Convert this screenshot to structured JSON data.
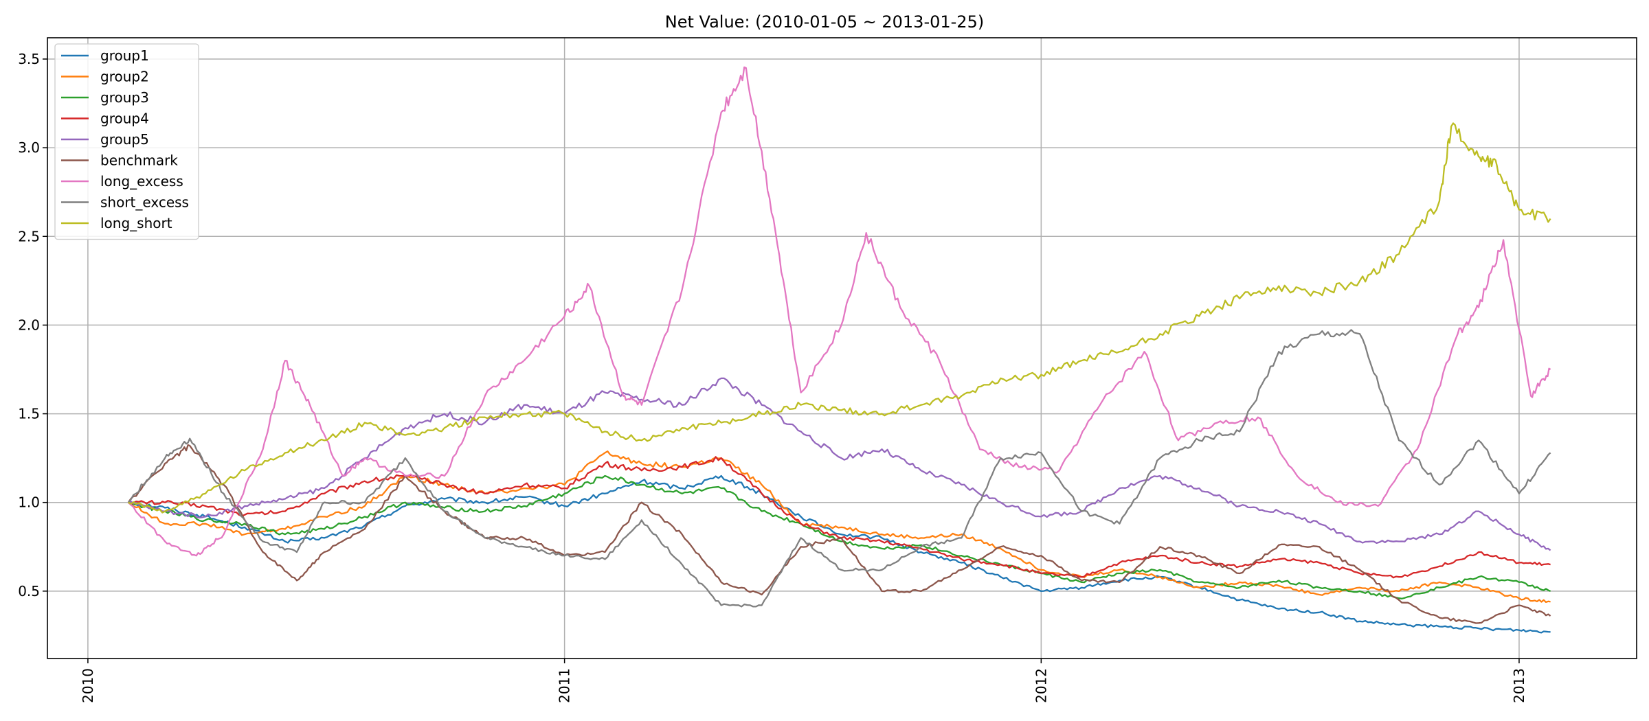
{
  "chart_data": {
    "type": "line",
    "title": "Net Value: (2010-01-05 ~ 2013-01-25)",
    "xlabel": "",
    "ylabel": "",
    "xlim": [
      "2009-12-01",
      "2013-04-01"
    ],
    "ylim": [
      0.12,
      3.62
    ],
    "x_ticks": [
      "2010-01-01",
      "2011-01-01",
      "2012-01-01",
      "2013-01-01"
    ],
    "x_tick_labels": [
      "2010",
      "2011",
      "2012",
      "2013"
    ],
    "y_ticks": [
      0.5,
      1.0,
      1.5,
      2.0,
      2.5,
      3.0,
      3.5
    ],
    "y_tick_labels": [
      "0.5",
      "1.0",
      "1.5",
      "2.0",
      "2.5",
      "3.0",
      "3.5"
    ],
    "grid": true,
    "legend_position": "top-left",
    "series": [
      {
        "name": "group1",
        "color": "#1f77b4",
        "x": [
          "2010-02-01",
          "2010-03-01",
          "2010-04-01",
          "2010-05-01",
          "2010-06-01",
          "2010-07-01",
          "2010-08-01",
          "2010-09-01",
          "2010-10-01",
          "2010-11-01",
          "2010-12-01",
          "2011-01-01",
          "2011-02-01",
          "2011-03-01",
          "2011-04-01",
          "2011-05-01",
          "2011-06-01",
          "2011-07-01",
          "2011-08-01",
          "2011-09-01",
          "2011-10-01",
          "2011-11-01",
          "2011-12-01",
          "2012-01-01",
          "2012-02-01",
          "2012-03-01",
          "2012-04-01",
          "2012-05-01",
          "2012-06-01",
          "2012-07-01",
          "2012-08-01",
          "2012-09-01",
          "2012-10-01",
          "2012-11-01",
          "2012-12-01",
          "2013-01-01",
          "2013-01-25"
        ],
        "y": [
          1.0,
          0.97,
          0.92,
          0.86,
          0.78,
          0.8,
          0.87,
          0.98,
          1.02,
          1.0,
          1.03,
          0.98,
          1.05,
          1.12,
          1.08,
          1.15,
          1.05,
          0.92,
          0.82,
          0.8,
          0.72,
          0.66,
          0.58,
          0.5,
          0.52,
          0.56,
          0.58,
          0.52,
          0.45,
          0.4,
          0.38,
          0.33,
          0.31,
          0.3,
          0.29,
          0.28,
          0.27
        ]
      },
      {
        "name": "group2",
        "color": "#ff7f0e",
        "x": [
          "2010-02-01",
          "2010-03-01",
          "2010-04-01",
          "2010-05-01",
          "2010-06-01",
          "2010-07-01",
          "2010-08-01",
          "2010-09-01",
          "2010-10-01",
          "2010-11-01",
          "2010-12-01",
          "2011-01-01",
          "2011-02-01",
          "2011-03-01",
          "2011-04-01",
          "2011-05-01",
          "2011-06-01",
          "2011-07-01",
          "2011-08-01",
          "2011-09-01",
          "2011-10-01",
          "2011-11-01",
          "2011-12-01",
          "2012-01-01",
          "2012-02-01",
          "2012-03-01",
          "2012-04-01",
          "2012-05-01",
          "2012-06-01",
          "2012-07-01",
          "2012-08-01",
          "2012-09-01",
          "2012-10-01",
          "2012-11-01",
          "2012-12-01",
          "2013-01-01",
          "2013-01-25"
        ],
        "y": [
          1.0,
          0.88,
          0.88,
          0.82,
          0.85,
          0.92,
          0.98,
          1.15,
          1.1,
          1.05,
          1.08,
          1.1,
          1.28,
          1.22,
          1.2,
          1.25,
          1.1,
          0.88,
          0.86,
          0.82,
          0.8,
          0.82,
          0.74,
          0.62,
          0.58,
          0.62,
          0.58,
          0.52,
          0.55,
          0.53,
          0.48,
          0.52,
          0.5,
          0.55,
          0.52,
          0.46,
          0.44
        ]
      },
      {
        "name": "group3",
        "color": "#2ca02c",
        "x": [
          "2010-02-01",
          "2010-03-01",
          "2010-04-01",
          "2010-05-01",
          "2010-06-01",
          "2010-07-01",
          "2010-08-01",
          "2010-09-01",
          "2010-10-01",
          "2010-11-01",
          "2010-12-01",
          "2011-01-01",
          "2011-02-01",
          "2011-03-01",
          "2011-04-01",
          "2011-05-01",
          "2011-06-01",
          "2011-07-01",
          "2011-08-01",
          "2011-09-01",
          "2011-10-01",
          "2011-11-01",
          "2011-12-01",
          "2012-01-01",
          "2012-02-01",
          "2012-03-01",
          "2012-04-01",
          "2012-05-01",
          "2012-06-01",
          "2012-07-01",
          "2012-08-01",
          "2012-09-01",
          "2012-10-01",
          "2012-11-01",
          "2012-12-01",
          "2013-01-01",
          "2013-01-25"
        ],
        "y": [
          1.0,
          0.95,
          0.9,
          0.88,
          0.82,
          0.85,
          0.92,
          1.0,
          0.97,
          0.95,
          0.98,
          1.05,
          1.15,
          1.1,
          1.05,
          1.08,
          0.95,
          0.88,
          0.78,
          0.74,
          0.76,
          0.7,
          0.65,
          0.6,
          0.55,
          0.6,
          0.62,
          0.55,
          0.52,
          0.56,
          0.52,
          0.5,
          0.46,
          0.52,
          0.58,
          0.55,
          0.5
        ]
      },
      {
        "name": "group4",
        "color": "#d62728",
        "x": [
          "2010-02-01",
          "2010-03-01",
          "2010-04-01",
          "2010-05-01",
          "2010-06-01",
          "2010-07-01",
          "2010-08-01",
          "2010-09-01",
          "2010-10-01",
          "2010-11-01",
          "2010-12-01",
          "2011-01-01",
          "2011-02-01",
          "2011-03-01",
          "2011-04-01",
          "2011-05-01",
          "2011-06-01",
          "2011-07-01",
          "2011-08-01",
          "2011-09-01",
          "2011-10-01",
          "2011-11-01",
          "2011-12-01",
          "2012-01-01",
          "2012-02-01",
          "2012-03-01",
          "2012-04-01",
          "2012-05-01",
          "2012-06-01",
          "2012-07-01",
          "2012-08-01",
          "2012-09-01",
          "2012-10-01",
          "2012-11-01",
          "2012-12-01",
          "2013-01-01",
          "2013-01-25"
        ],
        "y": [
          1.0,
          1.0,
          0.98,
          0.93,
          0.95,
          1.05,
          1.12,
          1.15,
          1.1,
          1.05,
          1.1,
          1.08,
          1.22,
          1.18,
          1.2,
          1.25,
          1.05,
          0.88,
          0.8,
          0.78,
          0.74,
          0.68,
          0.65,
          0.6,
          0.58,
          0.66,
          0.7,
          0.66,
          0.64,
          0.68,
          0.66,
          0.6,
          0.58,
          0.64,
          0.72,
          0.66,
          0.65
        ]
      },
      {
        "name": "group5",
        "color": "#9467bd",
        "x": [
          "2010-02-01",
          "2010-03-01",
          "2010-04-01",
          "2010-05-01",
          "2010-06-01",
          "2010-07-01",
          "2010-08-01",
          "2010-09-01",
          "2010-10-01",
          "2010-11-01",
          "2010-12-01",
          "2011-01-01",
          "2011-02-01",
          "2011-03-01",
          "2011-04-01",
          "2011-05-01",
          "2011-06-01",
          "2011-07-01",
          "2011-08-01",
          "2011-09-01",
          "2011-10-01",
          "2011-11-01",
          "2011-12-01",
          "2012-01-01",
          "2012-02-01",
          "2012-03-01",
          "2012-04-01",
          "2012-05-01",
          "2012-06-01",
          "2012-07-01",
          "2012-08-01",
          "2012-09-01",
          "2012-10-01",
          "2012-11-01",
          "2012-12-01",
          "2013-01-01",
          "2013-01-25"
        ],
        "y": [
          1.0,
          0.95,
          0.92,
          0.98,
          1.02,
          1.08,
          1.25,
          1.42,
          1.5,
          1.45,
          1.55,
          1.5,
          1.62,
          1.58,
          1.55,
          1.7,
          1.55,
          1.4,
          1.25,
          1.3,
          1.18,
          1.1,
          1.0,
          0.92,
          0.95,
          1.08,
          1.15,
          1.08,
          0.98,
          0.95,
          0.88,
          0.78,
          0.78,
          0.82,
          0.95,
          0.82,
          0.73
        ]
      },
      {
        "name": "benchmark",
        "color": "#8c564b",
        "x": [
          "2010-02-01",
          "2010-03-01",
          "2010-03-20",
          "2010-04-15",
          "2010-05-15",
          "2010-06-10",
          "2010-07-01",
          "2010-08-01",
          "2010-09-01",
          "2010-10-01",
          "2010-11-01",
          "2010-12-01",
          "2011-01-01",
          "2011-02-01",
          "2011-03-01",
          "2011-04-01",
          "2011-05-01",
          "2011-06-01",
          "2011-07-01",
          "2011-08-01",
          "2011-09-01",
          "2011-10-01",
          "2011-11-01",
          "2011-12-01",
          "2012-01-01",
          "2012-02-01",
          "2012-03-01",
          "2012-04-01",
          "2012-05-01",
          "2012-06-01",
          "2012-07-01",
          "2012-08-01",
          "2012-09-01",
          "2012-10-01",
          "2012-11-01",
          "2012-12-01",
          "2013-01-01",
          "2013-01-25"
        ],
        "y": [
          1.0,
          1.22,
          1.32,
          1.1,
          0.72,
          0.56,
          0.72,
          0.85,
          1.15,
          0.95,
          0.8,
          0.8,
          0.7,
          0.72,
          1.0,
          0.82,
          0.55,
          0.48,
          0.75,
          0.8,
          0.5,
          0.5,
          0.62,
          0.75,
          0.7,
          0.56,
          0.55,
          0.75,
          0.7,
          0.6,
          0.76,
          0.75,
          0.62,
          0.45,
          0.35,
          0.32,
          0.42,
          0.36
        ]
      },
      {
        "name": "long_excess",
        "color": "#e377c2",
        "x": [
          "2010-02-01",
          "2010-03-01",
          "2010-03-25",
          "2010-04-15",
          "2010-05-15",
          "2010-06-01",
          "2010-06-20",
          "2010-07-15",
          "2010-08-01",
          "2010-09-01",
          "2010-10-01",
          "2010-11-01",
          "2010-12-01",
          "2011-01-01",
          "2011-01-20",
          "2011-02-15",
          "2011-03-01",
          "2011-04-01",
          "2011-05-01",
          "2011-05-20",
          "2011-06-10",
          "2011-07-01",
          "2011-08-01",
          "2011-08-20",
          "2011-09-15",
          "2011-10-15",
          "2011-11-15",
          "2011-12-15",
          "2012-01-15",
          "2012-02-15",
          "2012-03-20",
          "2012-04-15",
          "2012-05-15",
          "2012-06-15",
          "2012-07-15",
          "2012-08-15",
          "2012-09-15",
          "2012-10-15",
          "2012-11-15",
          "2012-12-01",
          "2012-12-20",
          "2013-01-10",
          "2013-01-25"
        ],
        "y": [
          1.0,
          0.78,
          0.7,
          0.82,
          1.3,
          1.8,
          1.55,
          1.15,
          1.25,
          1.15,
          1.15,
          1.6,
          1.8,
          2.05,
          2.22,
          1.6,
          1.55,
          2.2,
          3.2,
          3.45,
          2.6,
          1.62,
          2.0,
          2.52,
          2.1,
          1.8,
          1.3,
          1.2,
          1.18,
          1.55,
          1.85,
          1.35,
          1.45,
          1.48,
          1.15,
          1.0,
          0.98,
          1.3,
          1.95,
          2.1,
          2.48,
          1.6,
          1.75
        ]
      },
      {
        "name": "short_excess",
        "color": "#7f7f7f",
        "x": [
          "2010-02-01",
          "2010-03-01",
          "2010-03-20",
          "2010-04-15",
          "2010-05-15",
          "2010-06-10",
          "2010-07-01",
          "2010-08-01",
          "2010-09-01",
          "2010-10-01",
          "2010-11-01",
          "2010-12-01",
          "2011-01-01",
          "2011-02-01",
          "2011-03-01",
          "2011-04-01",
          "2011-05-01",
          "2011-06-01",
          "2011-07-01",
          "2011-08-01",
          "2011-09-01",
          "2011-10-01",
          "2011-11-01",
          "2011-12-01",
          "2012-01-01",
          "2012-02-01",
          "2012-03-01",
          "2012-04-01",
          "2012-05-01",
          "2012-06-01",
          "2012-07-01",
          "2012-08-01",
          "2012-09-01",
          "2012-10-01",
          "2012-11-01",
          "2012-12-01",
          "2013-01-01",
          "2013-01-25"
        ],
        "y": [
          1.0,
          1.25,
          1.36,
          1.05,
          0.78,
          0.72,
          1.0,
          1.0,
          1.25,
          0.95,
          0.8,
          0.75,
          0.7,
          0.68,
          0.9,
          0.65,
          0.42,
          0.42,
          0.8,
          0.62,
          0.62,
          0.75,
          0.8,
          1.25,
          1.28,
          0.95,
          0.88,
          1.25,
          1.35,
          1.4,
          1.85,
          1.95,
          1.95,
          1.35,
          1.1,
          1.35,
          1.05,
          1.28
        ]
      },
      {
        "name": "long_short",
        "color": "#bcbd22",
        "x": [
          "2010-02-01",
          "2010-03-01",
          "2010-04-01",
          "2010-05-01",
          "2010-06-01",
          "2010-07-01",
          "2010-08-01",
          "2010-09-01",
          "2010-10-01",
          "2010-11-01",
          "2010-12-01",
          "2011-01-01",
          "2011-02-01",
          "2011-03-01",
          "2011-04-01",
          "2011-05-01",
          "2011-06-01",
          "2011-07-01",
          "2011-08-01",
          "2011-09-01",
          "2011-10-01",
          "2011-11-01",
          "2011-12-01",
          "2012-01-01",
          "2012-02-01",
          "2012-03-01",
          "2012-04-01",
          "2012-05-01",
          "2012-06-01",
          "2012-07-01",
          "2012-08-01",
          "2012-09-01",
          "2012-10-01",
          "2012-11-01",
          "2012-11-10",
          "2012-12-01",
          "2012-12-15",
          "2013-01-01",
          "2013-01-25"
        ],
        "y": [
          1.0,
          0.95,
          1.05,
          1.18,
          1.28,
          1.35,
          1.45,
          1.38,
          1.42,
          1.48,
          1.5,
          1.5,
          1.4,
          1.35,
          1.42,
          1.45,
          1.5,
          1.55,
          1.52,
          1.5,
          1.55,
          1.6,
          1.7,
          1.72,
          1.8,
          1.85,
          1.95,
          2.05,
          2.15,
          2.22,
          2.18,
          2.25,
          2.4,
          2.7,
          3.12,
          2.95,
          2.9,
          2.65,
          2.6
        ]
      }
    ]
  }
}
